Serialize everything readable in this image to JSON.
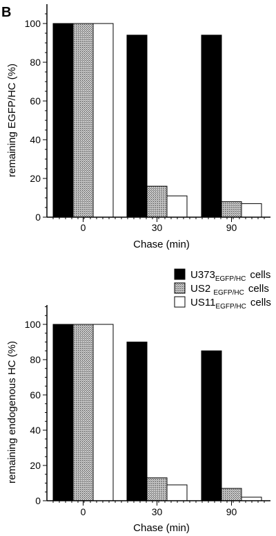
{
  "panel_label": "B",
  "legend": [
    {
      "base": "U373",
      "sub": "EGFP/HC",
      "suffix": "cells",
      "fill": "black"
    },
    {
      "base": "US2 ",
      "sub": "EGFP/HC",
      "suffix": "cells",
      "fill": "hatch"
    },
    {
      "base": "US11",
      "sub": "EGFP/HC",
      "suffix": "cells",
      "fill": "white"
    }
  ],
  "colors": {
    "bar_dark": "#000000",
    "bar_hatch": "#9a9a9a",
    "bar_white": "#ffffff",
    "axis": "#000000"
  },
  "chart_data": [
    {
      "type": "bar",
      "categories": [
        "0",
        "30",
        "90"
      ],
      "xlabel": "Chase (min)",
      "ylabel": "remaining EGFP/HC (%)",
      "ylim": [
        0,
        100
      ],
      "yticks": [
        0,
        20,
        40,
        60,
        80,
        100
      ],
      "series": [
        {
          "values": [
            100,
            94,
            94
          ]
        },
        {
          "values": [
            100,
            16,
            8
          ]
        },
        {
          "values": [
            100,
            11,
            7
          ]
        }
      ]
    },
    {
      "type": "bar",
      "categories": [
        "0",
        "30",
        "90"
      ],
      "xlabel": "Chase (min)",
      "ylabel": "remaining endogenous HC (%)",
      "ylim": [
        0,
        100
      ],
      "yticks": [
        0,
        20,
        40,
        60,
        80,
        100
      ],
      "series": [
        {
          "values": [
            100,
            90,
            85
          ]
        },
        {
          "values": [
            100,
            13,
            7
          ]
        },
        {
          "values": [
            100,
            9,
            2
          ]
        }
      ]
    }
  ]
}
